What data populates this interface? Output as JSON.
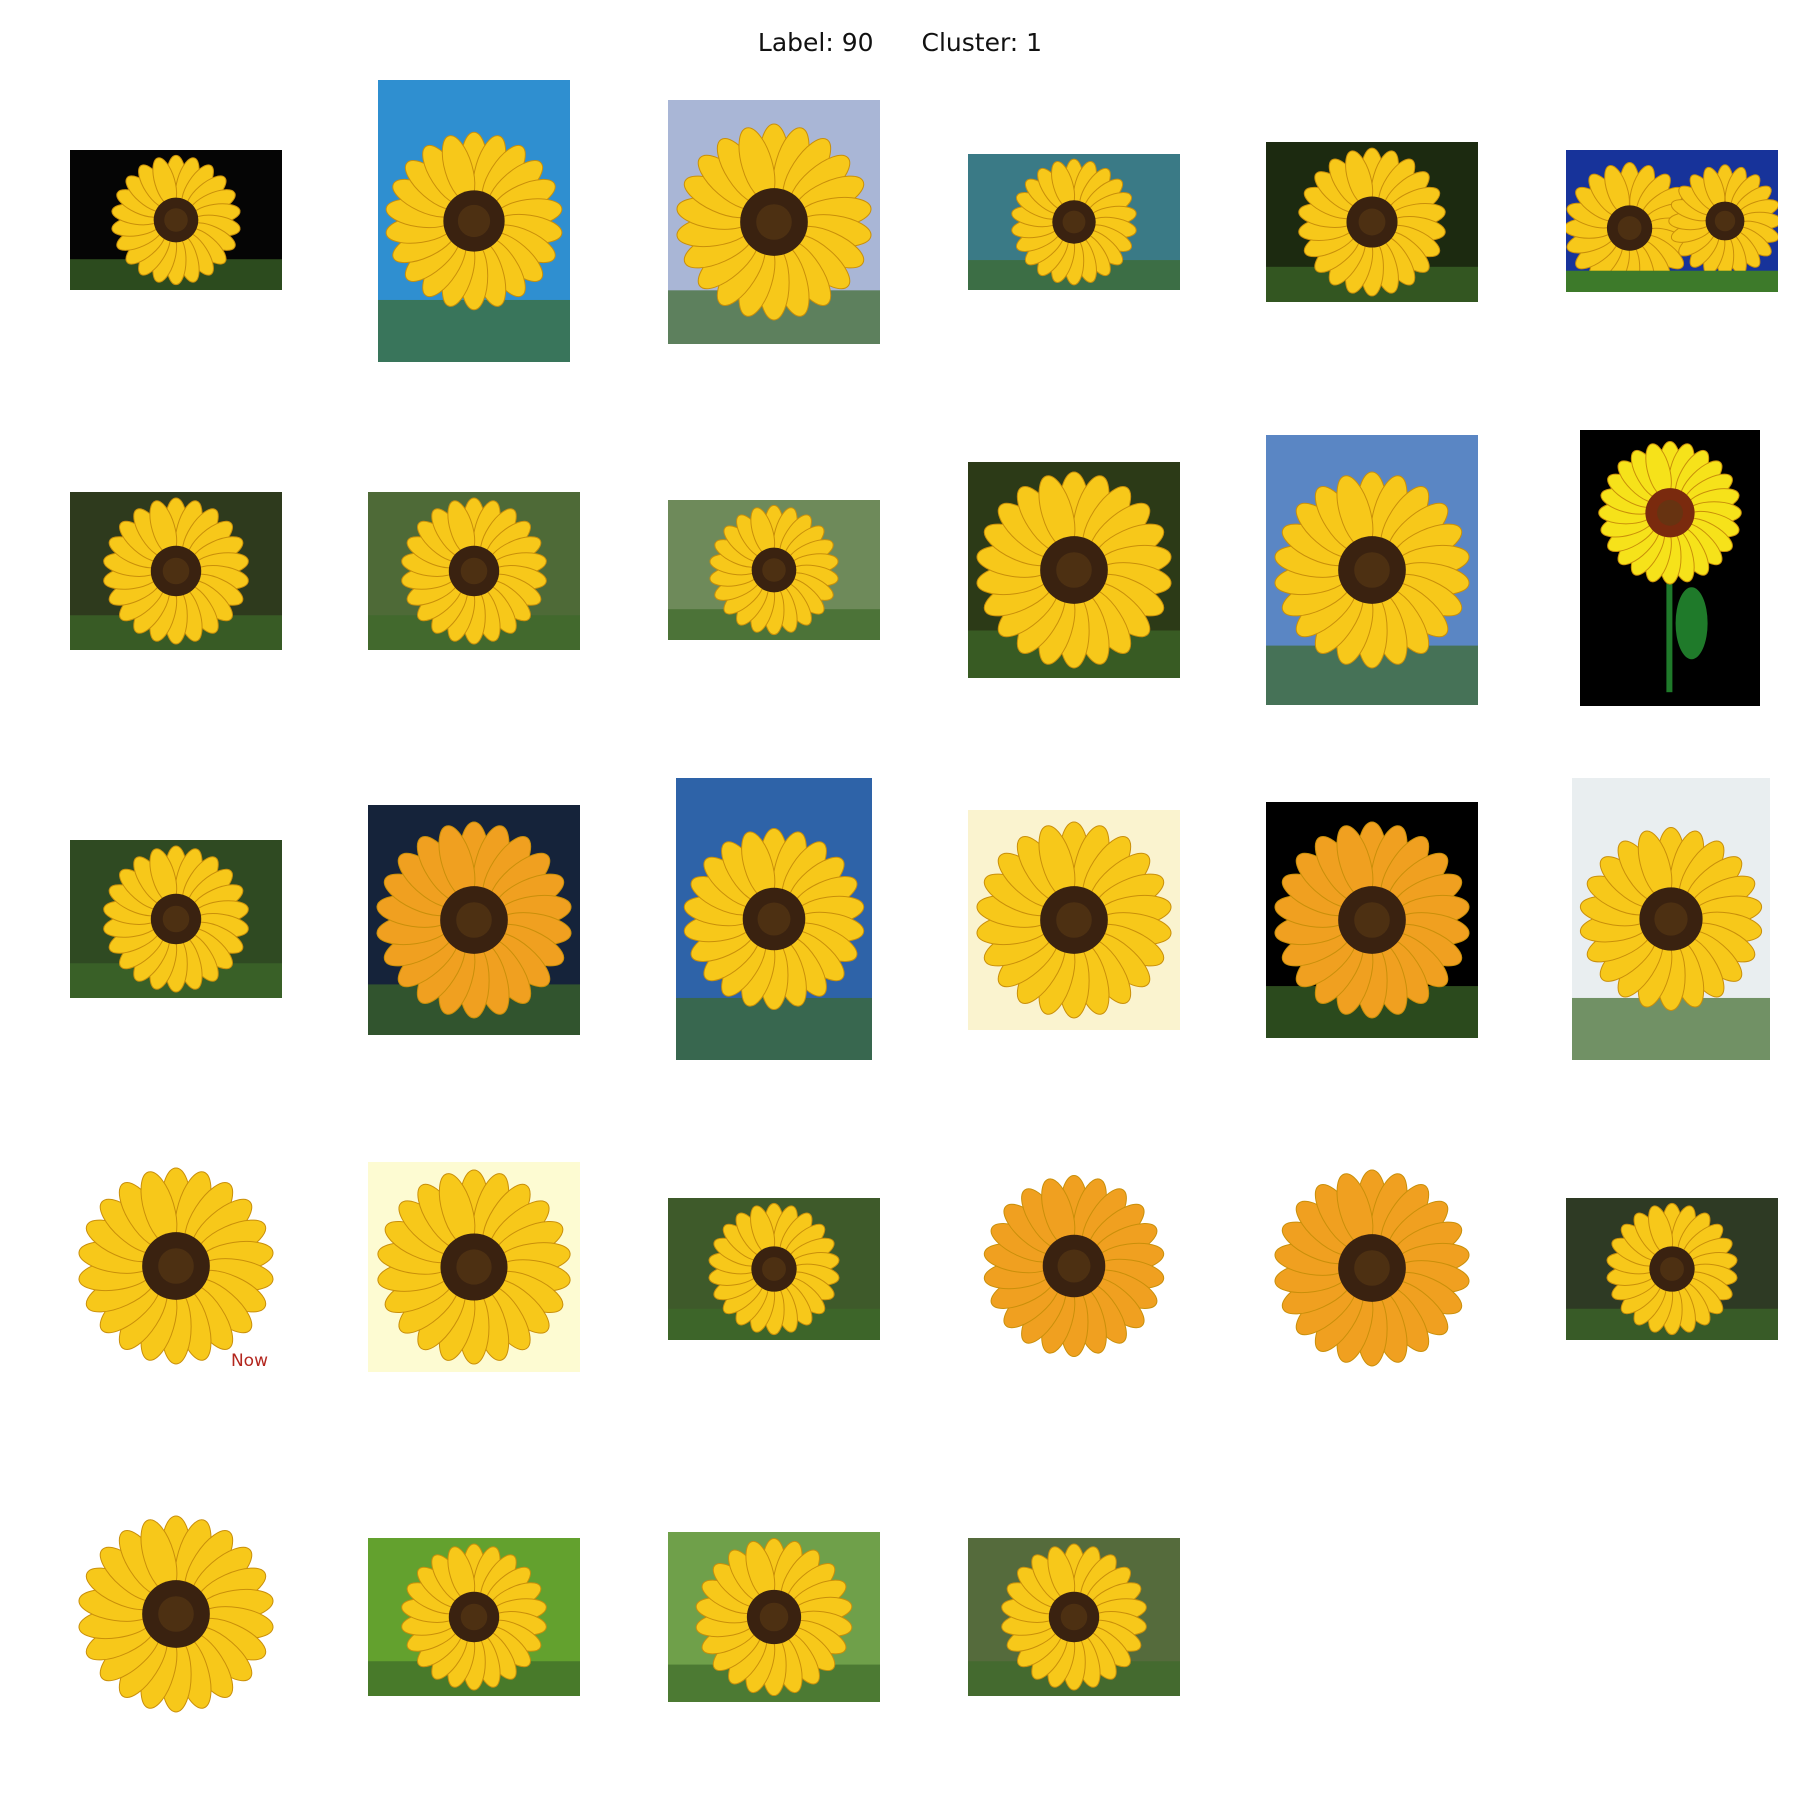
{
  "header": {
    "label_text": "Label: 90",
    "cluster_text": "Cluster: 1"
  },
  "colors": {
    "petal": "#f7c81a",
    "petal_orange": "#f0a020",
    "disk": "#3a2210"
  },
  "grid": {
    "rows": [
      [
        {
          "bg": "#050505",
          "kind": "photo"
        },
        {
          "bg": "#2f8fd0",
          "kind": "photo"
        },
        {
          "bg": "#a9b6d6",
          "kind": "photo"
        },
        {
          "bg": "#3a7a86",
          "kind": "photo"
        },
        {
          "bg": "#1c2a10",
          "kind": "photo"
        },
        {
          "bg": "#17339a",
          "kind": "photo-pair"
        }
      ],
      [
        {
          "bg": "#2e3a1d",
          "kind": "photo"
        },
        {
          "bg": "#4e6a37",
          "kind": "photo"
        },
        {
          "bg": "#6e8a5a",
          "kind": "photo"
        },
        {
          "bg": "#2c3a17",
          "kind": "photo"
        },
        {
          "bg": "#5a86c4",
          "kind": "photo"
        },
        {
          "bg": "#000000",
          "kind": "photo-stem"
        }
      ],
      [
        {
          "bg": "#2f4a22",
          "kind": "photo"
        },
        {
          "bg": "#15233a",
          "kind": "photo"
        },
        {
          "bg": "#2e63a8",
          "kind": "photo"
        },
        {
          "bg": "#faf3cf",
          "kind": "cutout"
        },
        {
          "bg": "#000000",
          "kind": "photo"
        },
        {
          "bg": "#e9eef0",
          "kind": "photo"
        }
      ],
      [
        {
          "bg": "#ffffff",
          "kind": "cutout",
          "caption": "Now"
        },
        {
          "bg": "#fdfbd2",
          "kind": "cutout"
        },
        {
          "bg": "#3e5a2a",
          "kind": "photo"
        },
        {
          "bg": "#ffffff",
          "kind": "cutout"
        },
        {
          "bg": "#ffffff",
          "kind": "cutout"
        },
        {
          "bg": "#2e3a24",
          "kind": "photo"
        }
      ],
      [
        {
          "bg": "#ffffff",
          "kind": "cutout"
        },
        {
          "bg": "#63a12e",
          "kind": "photo"
        },
        {
          "bg": "#6fa04a",
          "kind": "photo"
        },
        {
          "bg": "#556b3c",
          "kind": "photo"
        }
      ]
    ]
  }
}
